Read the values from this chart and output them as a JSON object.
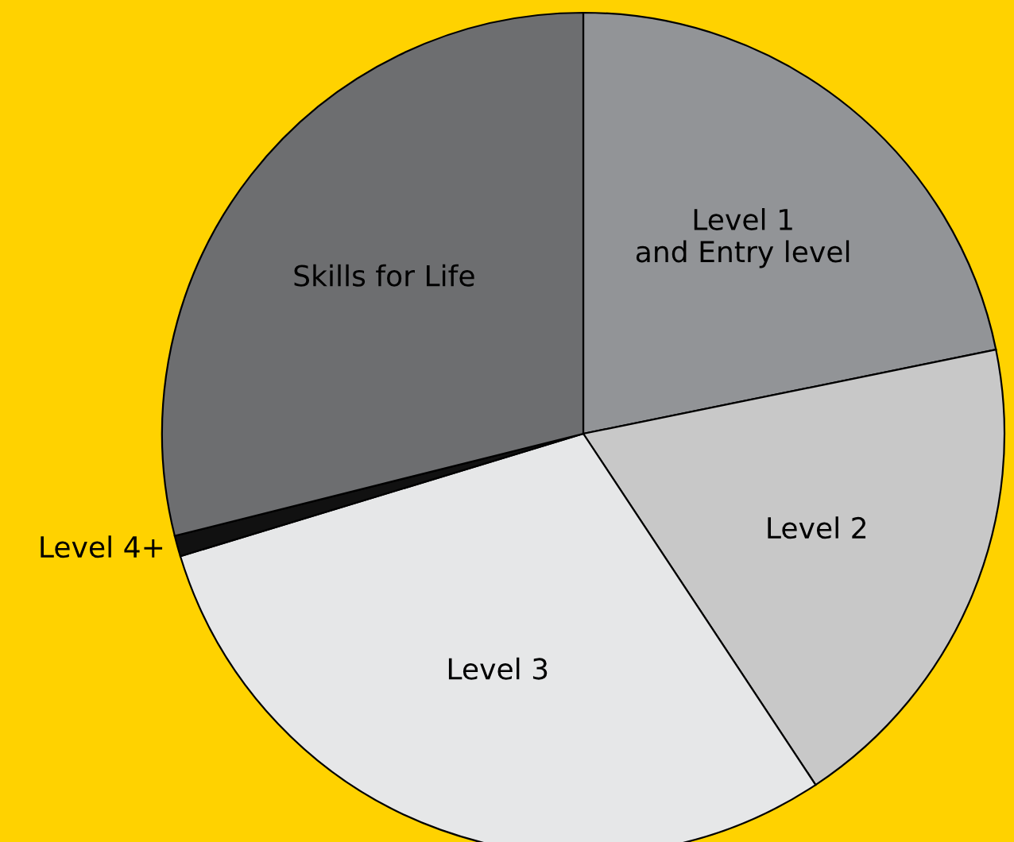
{
  "chart_data": {
    "type": "pie",
    "categories": [
      "Level 1\nand Entry level",
      "Level 2",
      "Level 3",
      "Level 4+",
      "Skills for Life"
    ],
    "values": [
      21.8,
      18.9,
      29.6,
      0.8,
      28.9
    ],
    "colors": [
      "#929497",
      "#c8c8c8",
      "#e6e7e8",
      "#111111",
      "#6d6e70"
    ]
  }
}
